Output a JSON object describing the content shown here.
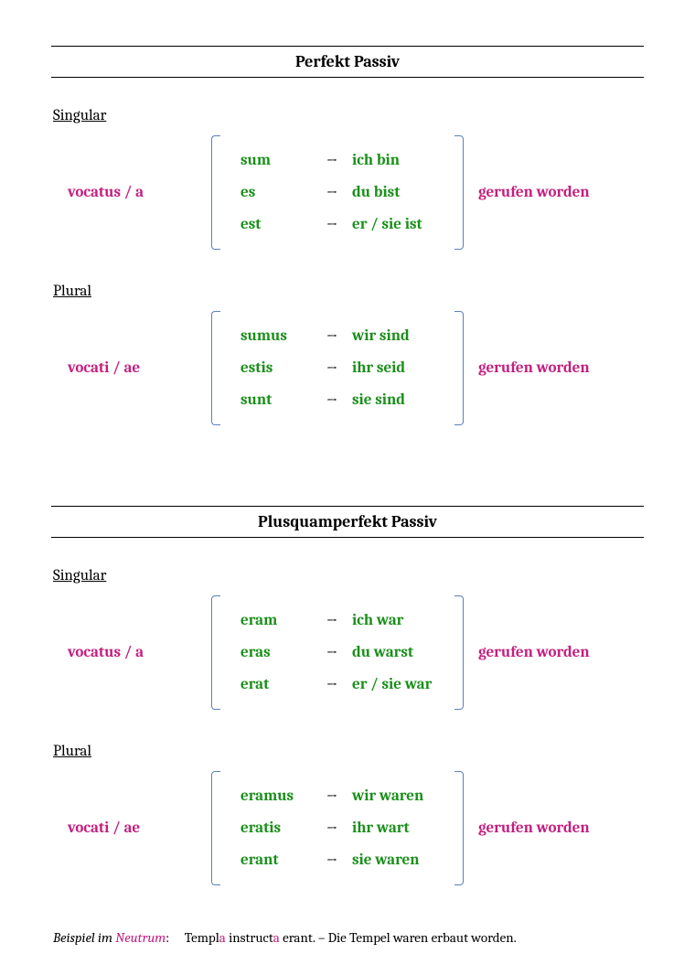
{
  "colors": {
    "magenta": "#c41e7f",
    "green": "#1a8f1a",
    "bracket": "#5b7fbf",
    "black": "#000000"
  },
  "sections": [
    {
      "title": "Perfekt Passiv",
      "groups": [
        {
          "number": "Singular",
          "participle": "vocatus / a",
          "translation": "gerufen worden",
          "rows": [
            {
              "latin": "sum",
              "arrow": "→",
              "german": "ich bin"
            },
            {
              "latin": "es",
              "arrow": "→",
              "german": "du bist"
            },
            {
              "latin": "est",
              "arrow": "→",
              "german": "er / sie ist"
            }
          ]
        },
        {
          "number": "Plural",
          "participle": "vocati / ae",
          "translation": "gerufen worden",
          "rows": [
            {
              "latin": "sumus",
              "arrow": "→",
              "german": "wir sind"
            },
            {
              "latin": "estis",
              "arrow": "→",
              "german": "ihr seid"
            },
            {
              "latin": "sunt",
              "arrow": "→",
              "german": "sie sind"
            }
          ]
        }
      ]
    },
    {
      "title": "Plusquamperfekt Passiv",
      "groups": [
        {
          "number": "Singular",
          "participle": "vocatus / a",
          "translation": "gerufen worden",
          "rows": [
            {
              "latin": "eram",
              "arrow": "→",
              "german": "ich war"
            },
            {
              "latin": "eras",
              "arrow": "→",
              "german": "du warst"
            },
            {
              "latin": "erat",
              "arrow": "→",
              "german": "er / sie war"
            }
          ]
        },
        {
          "number": "Plural",
          "participle": "vocati / ae",
          "translation": "gerufen worden",
          "rows": [
            {
              "latin": "eramus",
              "arrow": "→",
              "german": "wir waren"
            },
            {
              "latin": "eratis",
              "arrow": "→",
              "german": "ihr wart"
            },
            {
              "latin": "erant",
              "arrow": "→",
              "german": "sie waren"
            }
          ]
        }
      ]
    }
  ],
  "footnote": {
    "prefix_italic": "Beispiel im ",
    "neutrum": "Neutrum",
    "colon": ":",
    "spacer": "     ",
    "ex_p1": "Templ",
    "ex_a1": "a",
    "ex_p2": " instruct",
    "ex_a2": "a",
    "ex_p3": " erant. –  Die Tempel waren erbaut worden."
  }
}
